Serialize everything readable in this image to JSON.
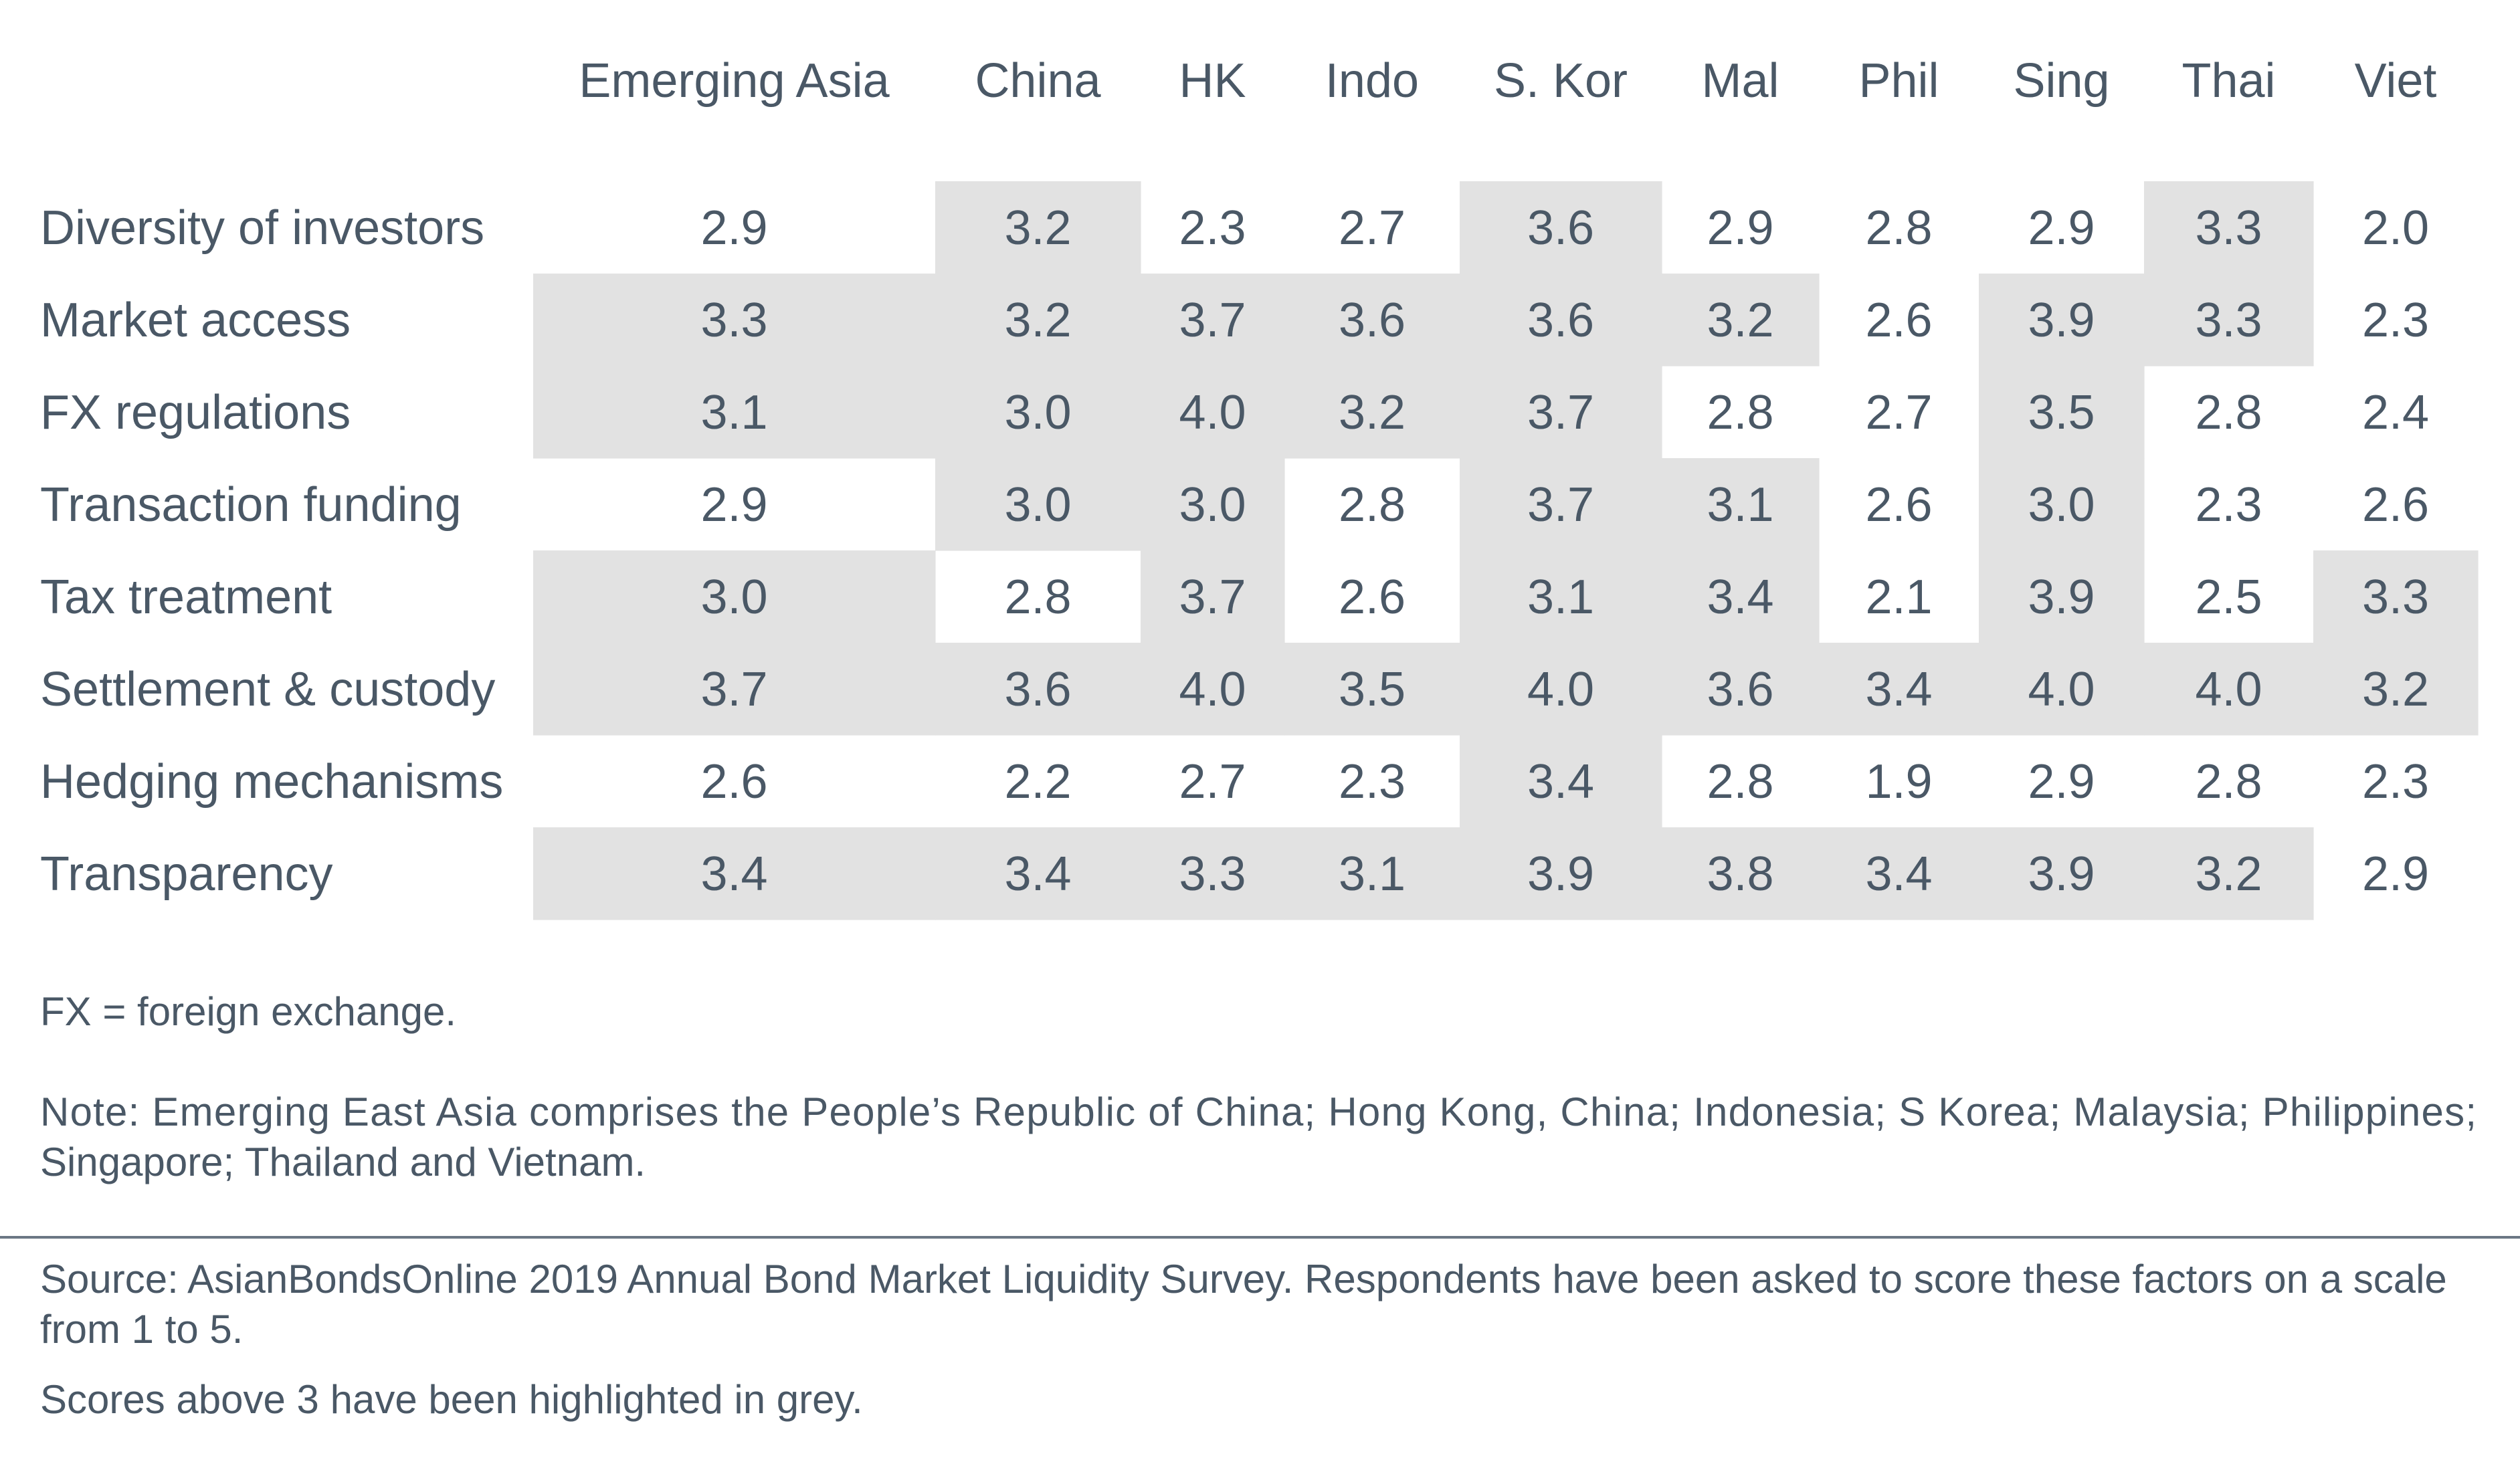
{
  "chart_data": {
    "type": "table",
    "columns": [
      "Emerging Asia",
      "China",
      "HK",
      "Indo",
      "S. Kor",
      "Mal",
      "Phil",
      "Sing",
      "Thai",
      "Viet"
    ],
    "rows": [
      {
        "label": "Diversity of investors",
        "values": [
          "2.9",
          "3.2",
          "2.3",
          "2.7",
          "3.6",
          "2.9",
          "2.8",
          "2.9",
          "3.3",
          "2.0"
        ]
      },
      {
        "label": "Market access",
        "values": [
          "3.3",
          "3.2",
          "3.7",
          "3.6",
          "3.6",
          "3.2",
          "2.6",
          "3.9",
          "3.3",
          "2.3"
        ]
      },
      {
        "label": "FX regulations",
        "values": [
          "3.1",
          "3.0",
          "4.0",
          "3.2",
          "3.7",
          "2.8",
          "2.7",
          "3.5",
          "2.8",
          "2.4"
        ]
      },
      {
        "label": "Transaction funding",
        "values": [
          "2.9",
          "3.0",
          "3.0",
          "2.8",
          "3.7",
          "3.1",
          "2.6",
          "3.0",
          "2.3",
          "2.6"
        ]
      },
      {
        "label": "Tax treatment",
        "values": [
          "3.0",
          "2.8",
          "3.7",
          "2.6",
          "3.1",
          "3.4",
          "2.1",
          "3.9",
          "2.5",
          "3.3"
        ]
      },
      {
        "label": "Settlement & custody",
        "values": [
          "3.7",
          "3.6",
          "4.0",
          "3.5",
          "4.0",
          "3.6",
          "3.4",
          "4.0",
          "4.0",
          "3.2"
        ]
      },
      {
        "label": "Hedging mechanisms",
        "values": [
          "2.6",
          "2.2",
          "2.7",
          "2.3",
          "3.4",
          "2.8",
          "1.9",
          "2.9",
          "2.8",
          "2.3"
        ]
      },
      {
        "label": "Transparency",
        "values": [
          "3.4",
          "3.4",
          "3.3",
          "3.1",
          "3.9",
          "3.8",
          "3.4",
          "3.9",
          "3.2",
          "2.9"
        ]
      }
    ],
    "highlighted": [
      [
        false,
        true,
        false,
        false,
        true,
        false,
        false,
        false,
        true,
        false
      ],
      [
        true,
        true,
        true,
        true,
        true,
        true,
        false,
        true,
        true,
        false
      ],
      [
        true,
        true,
        true,
        true,
        true,
        false,
        false,
        true,
        false,
        false
      ],
      [
        false,
        true,
        true,
        false,
        true,
        true,
        false,
        true,
        false,
        false
      ],
      [
        true,
        false,
        true,
        false,
        true,
        true,
        false,
        true,
        false,
        true
      ],
      [
        true,
        true,
        true,
        true,
        true,
        true,
        true,
        true,
        true,
        true
      ],
      [
        false,
        false,
        false,
        false,
        true,
        false,
        false,
        false,
        false,
        false
      ],
      [
        true,
        true,
        true,
        true,
        true,
        true,
        true,
        true,
        true,
        false
      ]
    ],
    "highlight_color": "#e2e2e2",
    "text_color": "#4a5866"
  },
  "notes": {
    "fx": "FX = foreign exchange.",
    "note_line1": "Note: Emerging East Asia comprises the People’s Republic of China; Hong Kong, China; Indonesia; S Korea; Malaysia; Philippines;",
    "note_line2": "Singapore; Thailand and Vietnam."
  },
  "source": {
    "line1": "Source: AsianBondsOnline 2019 Annual Bond Market Liquidity Survey. Respondents have been asked to score these factors on a scale",
    "line2": "from 1 to 5.",
    "line3": "Scores above 3 have been highlighted in grey."
  }
}
